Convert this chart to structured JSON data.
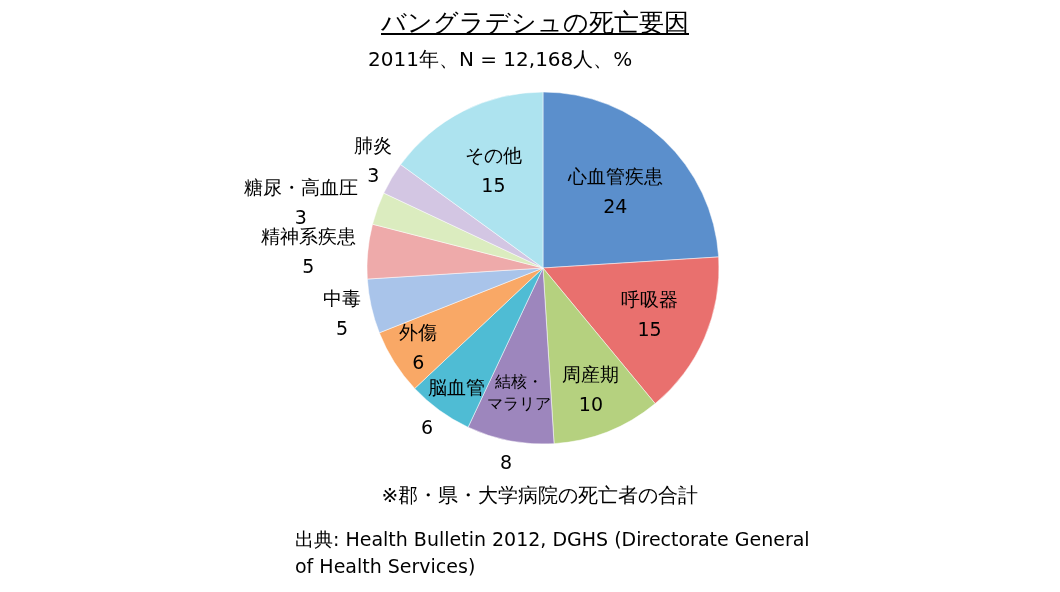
{
  "chart_data": {
    "type": "pie",
    "title": "バングラデシュの死亡要因",
    "subtitle": "2011年、N = 12,168人、%",
    "categories": [
      "心血管疾患",
      "呼吸器",
      "周産期",
      "結核・マラリア",
      "脳血管",
      "外傷",
      "中毒",
      "精神系疾患",
      "糖尿・高血圧",
      "肺炎",
      "その他"
    ],
    "values": [
      24,
      15,
      10,
      8,
      6,
      6,
      5,
      5,
      3,
      3,
      15
    ],
    "colors": [
      "#5b8fcc",
      "#e9706e",
      "#b5d17f",
      "#9d86bd",
      "#4fbcd4",
      "#f9a866",
      "#a9c4ea",
      "#eeaaaa",
      "#dbecbf",
      "#d3c6e3",
      "#ade3ef"
    ],
    "data_labels": true,
    "legend": false,
    "annotations": [
      "※郡・県・大学病院の死亡者の合計",
      "出典: Health Bulletin 2012, DGHS (Directorate General of Health Services)"
    ]
  }
}
